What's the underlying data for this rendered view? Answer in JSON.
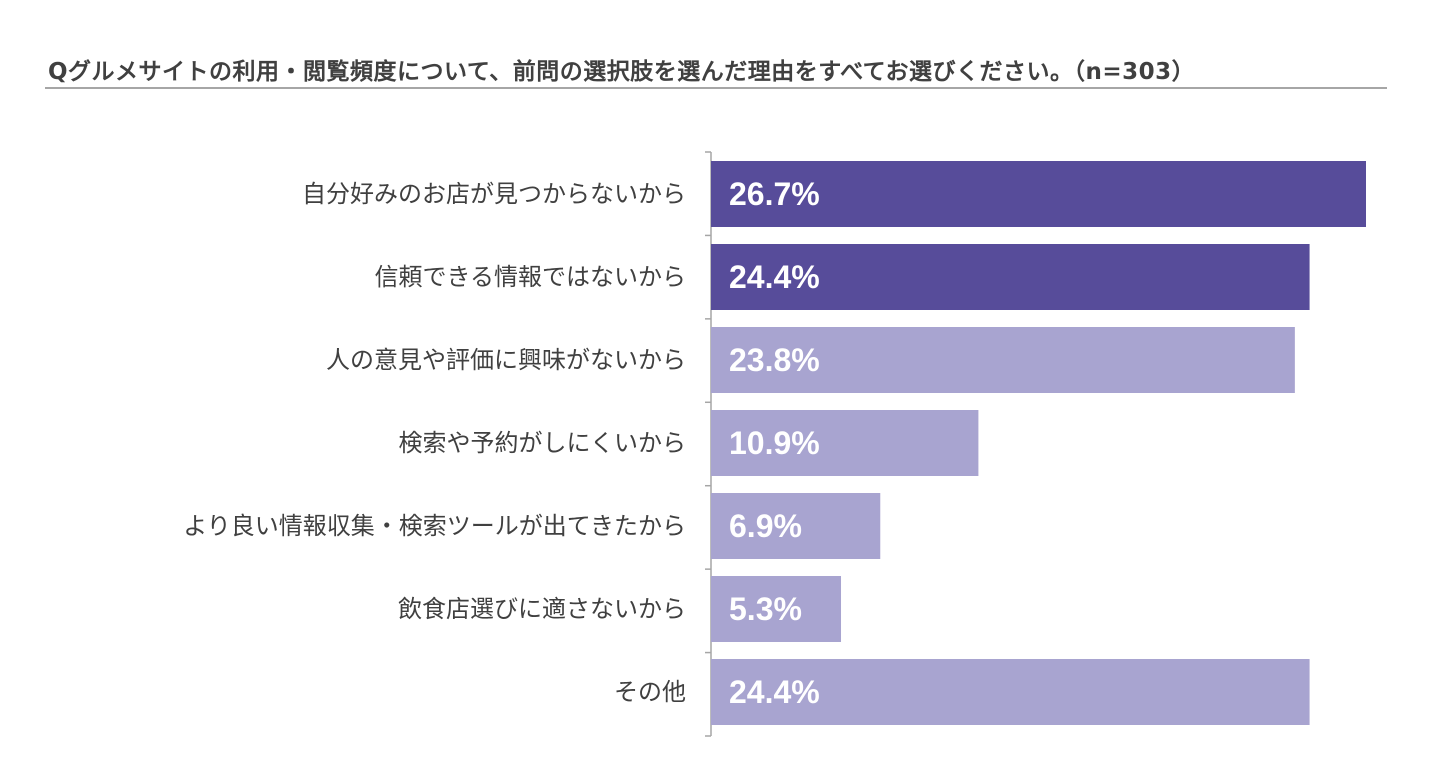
{
  "chart_data": {
    "type": "bar",
    "orientation": "horizontal",
    "title": "Qグルメサイトの利用・閲覧頻度について、前問の選択肢を選んだ理由をすべてお選びください。（n=303）",
    "categories": [
      "自分好みのお店が見つからないから",
      "信頼できる情報ではないから",
      "人の意見や評価に興味がないから",
      "検索や予約がしにくいから",
      "より良い情報収集・検索ツールが出てきたから",
      "飲食店選びに適さないから",
      "その他"
    ],
    "values": [
      26.7,
      24.4,
      23.8,
      10.9,
      6.9,
      5.3,
      24.4
    ],
    "value_labels": [
      "26.7%",
      "24.4%",
      "23.8%",
      "10.9%",
      "6.9%",
      "5.3%",
      "24.4%"
    ],
    "highlighted": [
      true,
      true,
      false,
      false,
      false,
      false,
      false
    ],
    "xlim": [
      0,
      26.7
    ],
    "xlabel": "",
    "ylabel": "",
    "grid": false,
    "legend": "none"
  },
  "colors": {
    "highlight": "#574c9a",
    "normal": "#a8a4d0",
    "axis": "#a6a6a6"
  }
}
